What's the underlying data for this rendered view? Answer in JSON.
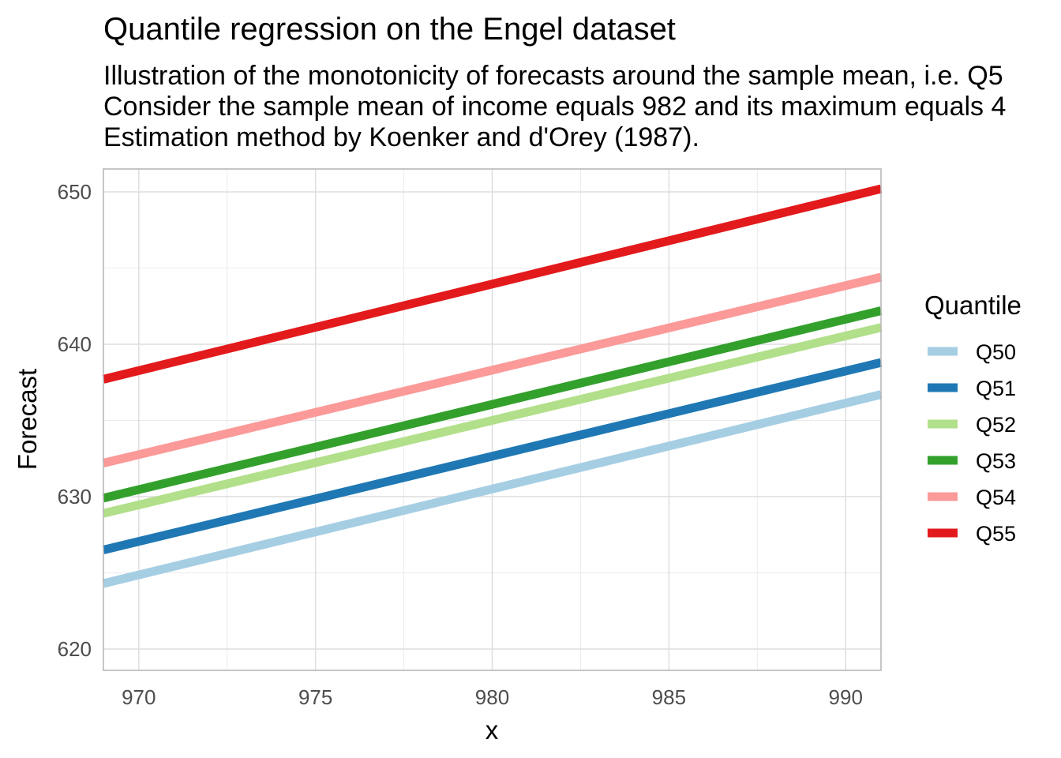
{
  "chart_data": {
    "type": "line",
    "title": "Quantile regression on the Engel dataset",
    "subtitle_lines": [
      "Illustration of the monotonicity of forecasts around the sample mean, i.e. Q5",
      "Consider the sample mean of income equals 982 and its maximum equals 4",
      "Estimation method by Koenker and d'Orey (1987)."
    ],
    "xlabel": "x",
    "ylabel": "Forecast",
    "xlim": [
      969,
      991
    ],
    "ylim": [
      618.6,
      651.5
    ],
    "x_ticks": [
      970,
      975,
      980,
      985,
      990
    ],
    "y_ticks": [
      620,
      630,
      640,
      650
    ],
    "grid": true,
    "legend_title": "Quantile",
    "legend_position": "right",
    "x": [
      969,
      991
    ],
    "series": [
      {
        "name": "Q50",
        "color": "#a6cee3",
        "values": [
          624.3,
          636.7
        ]
      },
      {
        "name": "Q51",
        "color": "#1f78b4",
        "values": [
          626.5,
          638.8
        ]
      },
      {
        "name": "Q52",
        "color": "#b2df8a",
        "values": [
          628.9,
          641.1
        ]
      },
      {
        "name": "Q53",
        "color": "#33a02c",
        "values": [
          629.9,
          642.2
        ]
      },
      {
        "name": "Q54",
        "color": "#fb9a99",
        "values": [
          632.2,
          644.4
        ]
      },
      {
        "name": "Q55",
        "color": "#e31a1c",
        "values": [
          637.7,
          650.2
        ]
      }
    ]
  }
}
